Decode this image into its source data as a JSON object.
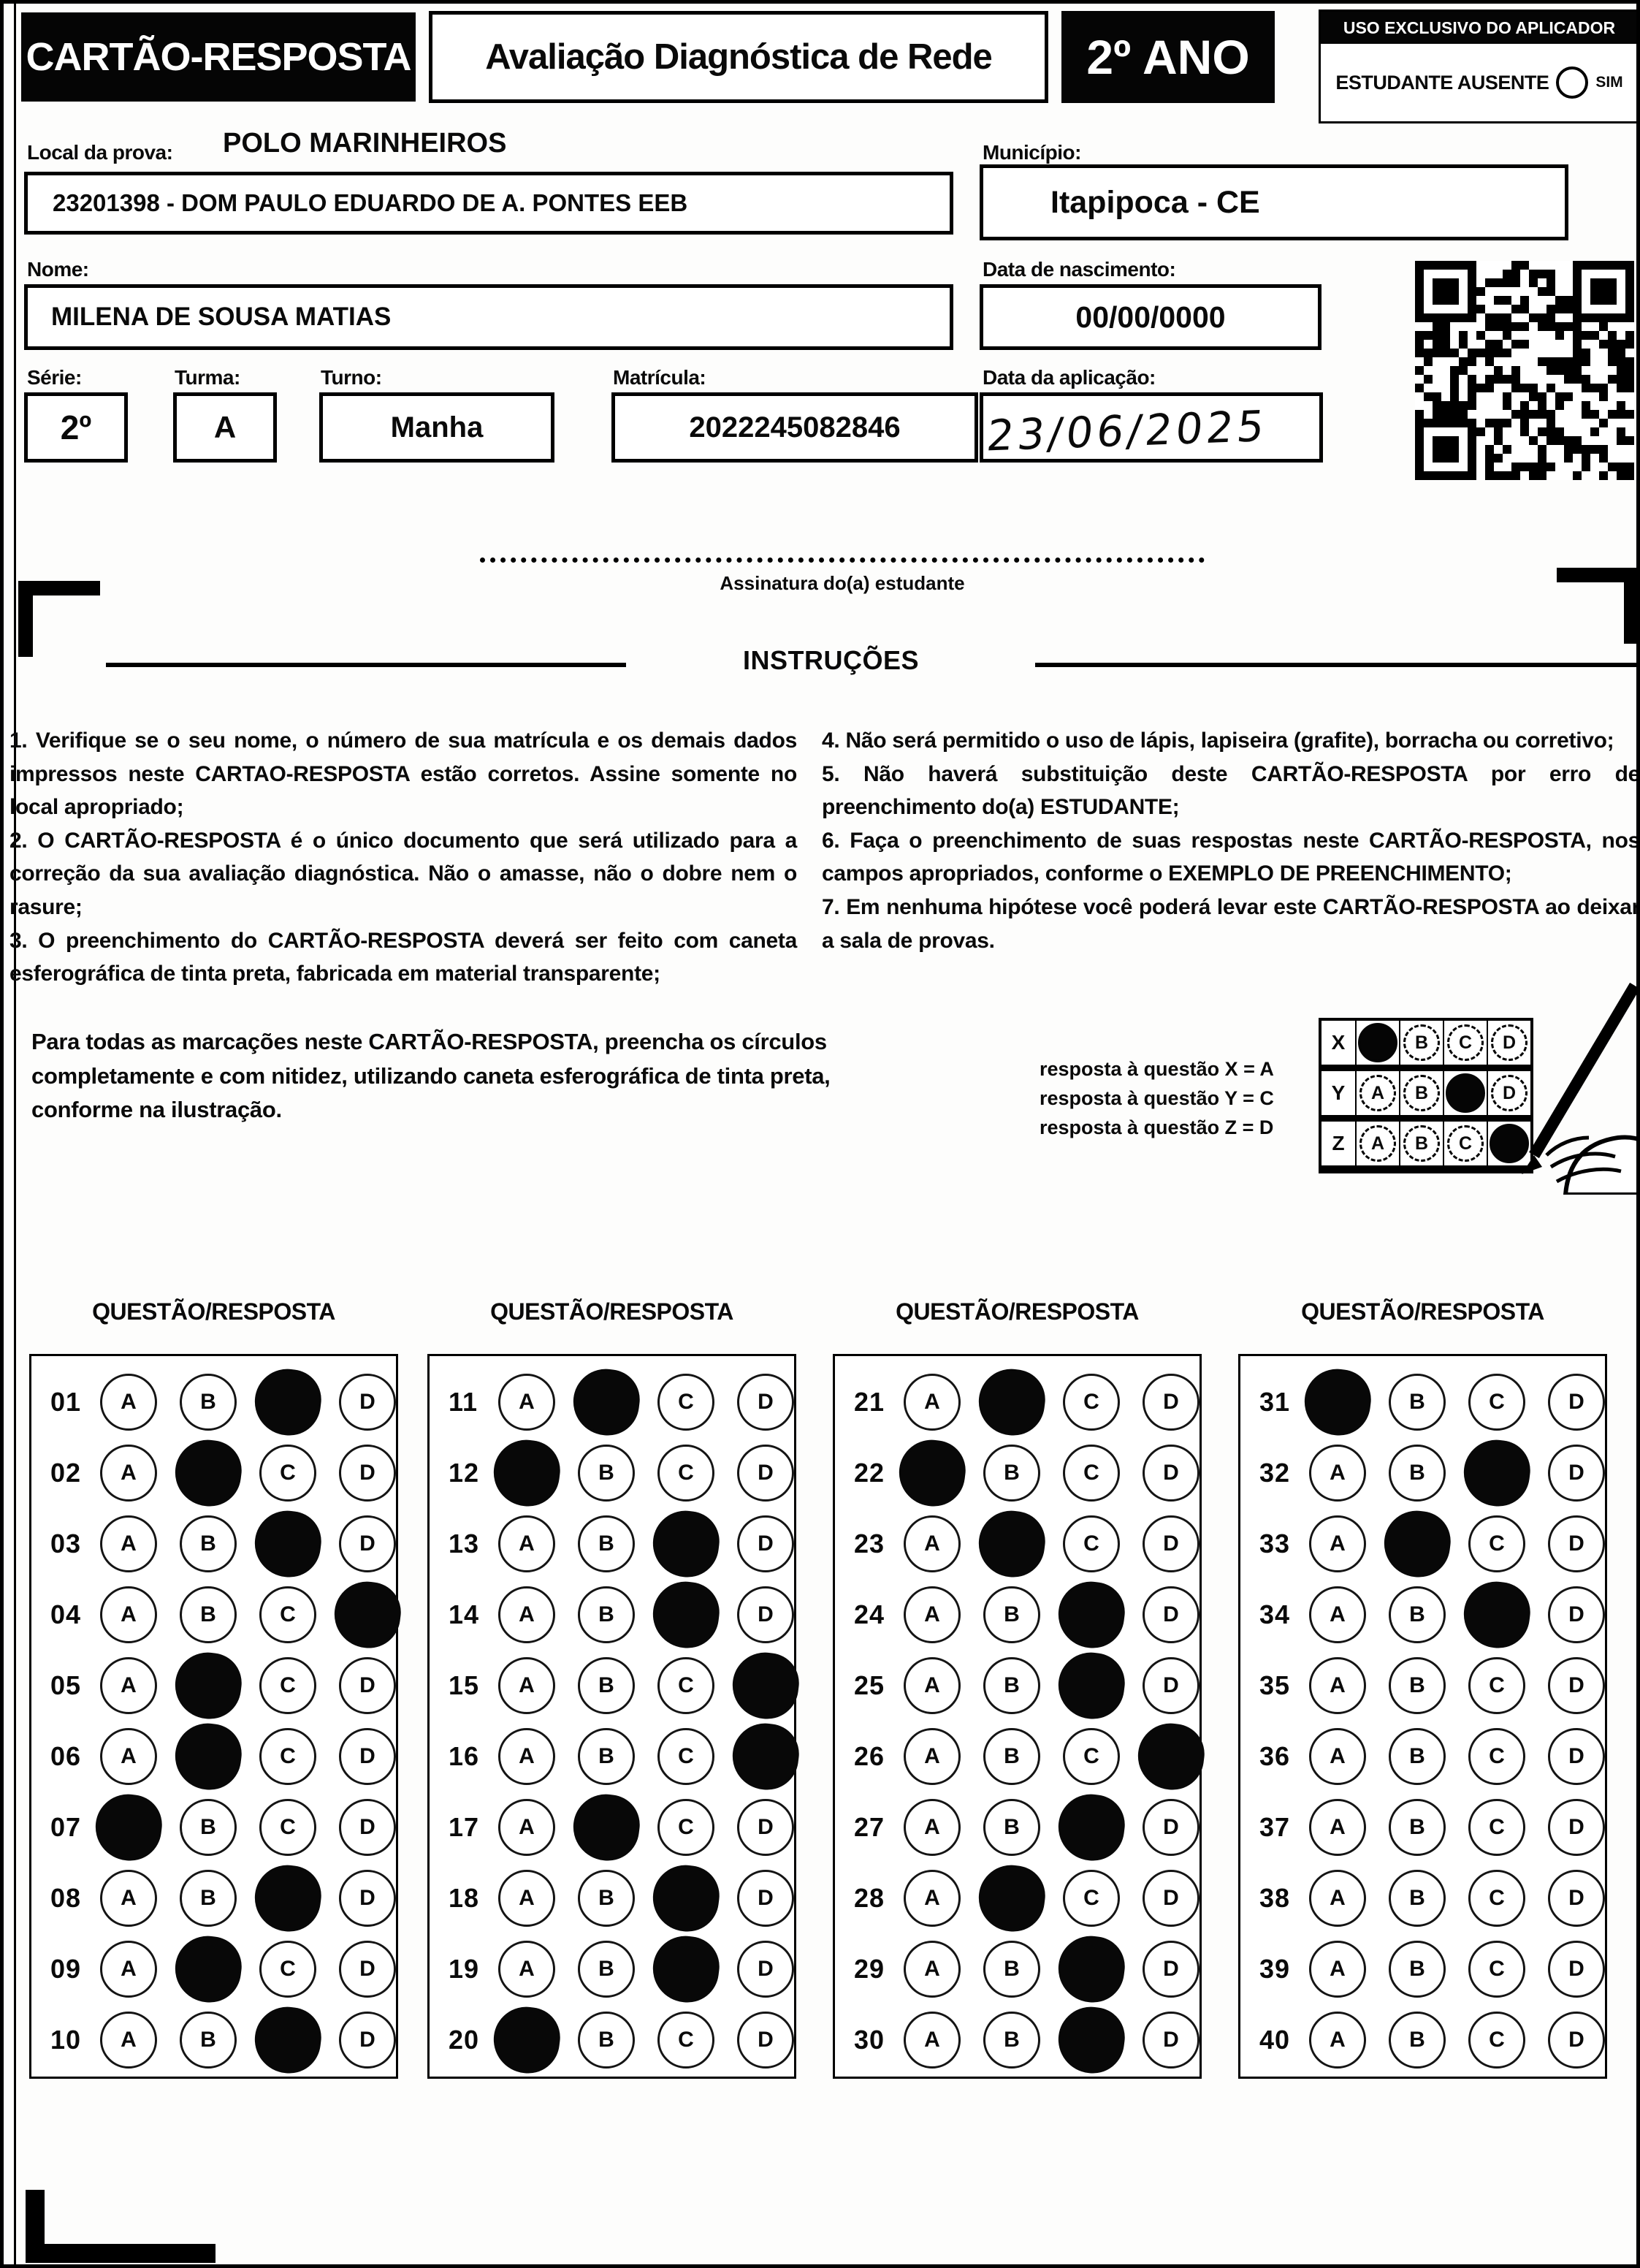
{
  "header": {
    "card_title": "CARTÃO-RESPOSTA",
    "exam_title": "Avaliação Diagnóstica de Rede",
    "grade": "2º ANO",
    "applicator_label": "USO EXCLUSIVO DO APLICADOR",
    "absent_label": "ESTUDANTE AUSENTE",
    "absent_option": "SIM"
  },
  "fields": {
    "local_label": "Local da prova:",
    "local_value": "POLO MARINHEIROS",
    "school_value": "23201398 - DOM PAULO EDUARDO DE A. PONTES EEB",
    "municipio_label": "Município:",
    "municipio_value": "Itapipoca - CE",
    "nome_label": "Nome:",
    "nome_value": "MILENA DE SOUSA MATIAS",
    "nascimento_label": "Data de nascimento:",
    "nascimento_value": "00/00/0000",
    "serie_label": "Série:",
    "serie_value": "2º",
    "turma_label": "Turma:",
    "turma_value": "A",
    "turno_label": "Turno:",
    "turno_value": "Manha",
    "matricula_label": "Matrícula:",
    "matricula_value": "2022245082846",
    "aplicacao_label": "Data da aplicação:",
    "aplicacao_value": "23/06/2025"
  },
  "signature": {
    "label": "Assinatura do(a) estudante"
  },
  "instructions": {
    "title": "INSTRUÇÕES",
    "left": [
      "1. Verifique se o seu nome, o número de sua matrícula e os demais dados impressos neste CARTAO-RESPOSTA estão corretos. Assine somente no local apropriado;",
      "2. O CARTÃO-RESPOSTA é o único documento que será utilizado para a correção da sua avaliação diagnóstica. Não o amasse, não o dobre nem o rasure;",
      "3. O preenchimento do CARTÃO-RESPOSTA deverá ser feito com caneta esferográfica de tinta preta, fabricada em material transparente;"
    ],
    "right": [
      "4. Não será permitido o uso de lápis, lapiseira (grafite), borracha ou corretivo;",
      "5. Não haverá substituição deste CARTÃO-RESPOSTA por erro de preenchimento do(a) ESTUDANTE;",
      "6. Faça o preenchimento de suas respostas neste CARTÃO-RESPOSTA, nos campos apropriados, conforme o EXEMPLO DE PREENCHIMENTO;",
      "7. Em nenhuma hipótese você poderá levar este CARTÃO-RESPOSTA ao deixar a sala de provas."
    ],
    "fill_note": "Para todas as marcações neste CARTÃO-RESPOSTA, preencha os círculos completamente e com nitidez, utilizando caneta esferográfica de tinta preta, conforme na ilustração.",
    "example_lines": [
      "resposta à questão X = A",
      "resposta à questão Y = C",
      "resposta à questão Z = D"
    ],
    "example_rows": [
      {
        "label": "X",
        "answer": "A"
      },
      {
        "label": "Y",
        "answer": "C"
      },
      {
        "label": "Z",
        "answer": "D"
      }
    ]
  },
  "answer_section": {
    "column_header": "QUESTÃO/RESPOSTA",
    "options": [
      "A",
      "B",
      "C",
      "D"
    ],
    "questions": [
      {
        "num": "01",
        "answer": "C"
      },
      {
        "num": "02",
        "answer": "B"
      },
      {
        "num": "03",
        "answer": "C"
      },
      {
        "num": "04",
        "answer": "D"
      },
      {
        "num": "05",
        "answer": "B"
      },
      {
        "num": "06",
        "answer": "B"
      },
      {
        "num": "07",
        "answer": "A"
      },
      {
        "num": "08",
        "answer": "C"
      },
      {
        "num": "09",
        "answer": "B"
      },
      {
        "num": "10",
        "answer": "C"
      },
      {
        "num": "11",
        "answer": "B"
      },
      {
        "num": "12",
        "answer": "A"
      },
      {
        "num": "13",
        "answer": "C"
      },
      {
        "num": "14",
        "answer": "C"
      },
      {
        "num": "15",
        "answer": "D"
      },
      {
        "num": "16",
        "answer": "D"
      },
      {
        "num": "17",
        "answer": "B"
      },
      {
        "num": "18",
        "answer": "C"
      },
      {
        "num": "19",
        "answer": "C"
      },
      {
        "num": "20",
        "answer": "A"
      },
      {
        "num": "21",
        "answer": "B"
      },
      {
        "num": "22",
        "answer": "A"
      },
      {
        "num": "23",
        "answer": "B"
      },
      {
        "num": "24",
        "answer": "C"
      },
      {
        "num": "25",
        "answer": "C"
      },
      {
        "num": "26",
        "answer": "D"
      },
      {
        "num": "27",
        "answer": "C"
      },
      {
        "num": "28",
        "answer": "B"
      },
      {
        "num": "29",
        "answer": "C"
      },
      {
        "num": "30",
        "answer": "C"
      },
      {
        "num": "31",
        "answer": "A"
      },
      {
        "num": "32",
        "answer": "C"
      },
      {
        "num": "33",
        "answer": "B"
      },
      {
        "num": "34",
        "answer": "C"
      },
      {
        "num": "35",
        "answer": null
      },
      {
        "num": "36",
        "answer": null
      },
      {
        "num": "37",
        "answer": null
      },
      {
        "num": "38",
        "answer": null
      },
      {
        "num": "39",
        "answer": null
      },
      {
        "num": "40",
        "answer": null
      }
    ]
  },
  "colors": {
    "ink": "#0a0a0a",
    "paper": "#fdfdfc"
  }
}
